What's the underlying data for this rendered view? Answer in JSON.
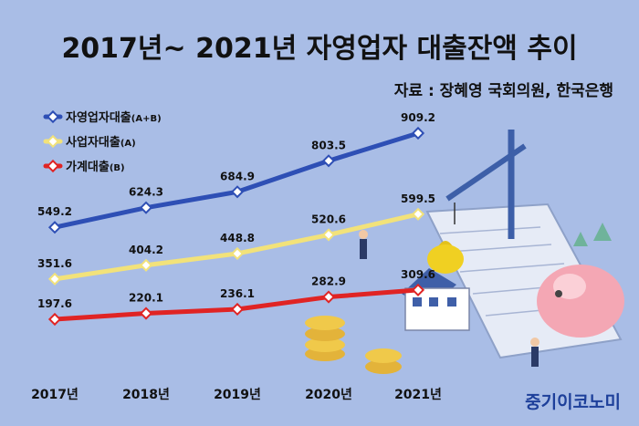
{
  "title": "2017년~ 2021년 자영업자 대출잔액 추이",
  "source": "자료 : 장혜영 국회의원, 한국은행",
  "brand": "중기이코노미",
  "chart_data": {
    "type": "line",
    "categories": [
      "2017년",
      "2018년",
      "2019년",
      "2020년",
      "2021년"
    ],
    "series": [
      {
        "name": "자영업자대출",
        "unit": "(A+B)",
        "color": "#2e4fb5",
        "values": [
          549.2,
          624.3,
          684.9,
          803.5,
          909.2
        ],
        "labels": [
          "549.2",
          "624.3",
          "684.9",
          "803.5",
          "909.2"
        ]
      },
      {
        "name": "사업자대출",
        "unit": "(A)",
        "color": "#f2e27a",
        "values": [
          351.6,
          404.2,
          448.8,
          520.6,
          599.5
        ],
        "labels": [
          "351.6",
          "404.2",
          "448.8",
          "520.6",
          "599.5"
        ]
      },
      {
        "name": "가계대출",
        "unit": "(B)",
        "color": "#e02424",
        "values": [
          197.6,
          220.1,
          236.1,
          282.9,
          309.6
        ],
        "labels": [
          "197.6",
          "220.1",
          "236.1",
          "282.9",
          "309.6"
        ]
      }
    ],
    "legend_position": "top-left",
    "grid": false
  }
}
